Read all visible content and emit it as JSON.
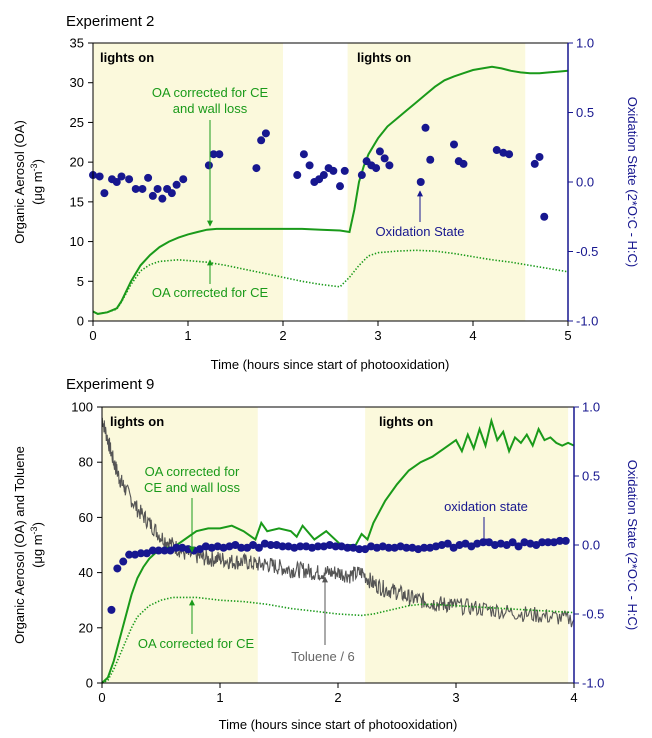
{
  "colors": {
    "oa_corrected_wall": "#1a9a1a",
    "oa_corrected_ce": "#1a9a1a",
    "oxidation_state": "#17178f",
    "toluene": "#555555",
    "lights_shading": "#fbf9dc",
    "right_axis": "#17178f"
  },
  "chart_data": [
    {
      "type": "line",
      "title": "Experiment 2",
      "xlabel": "Time (hours since start of photooxidation)",
      "ylabel": "Organic Aerosol (OA)",
      "ylabel_units_prefix": "(μg m",
      "ylabel_units_exp": "-3",
      "ylabel_units_suffix": ")",
      "y2label": "Oxidation State (2*O:C - H:C)",
      "xlim": [
        0,
        5
      ],
      "ylim": [
        0,
        35
      ],
      "y2lim": [
        -1.0,
        1.0
      ],
      "xticks": [
        "0",
        "1",
        "2",
        "3",
        "4",
        "5"
      ],
      "yticks": [
        "0",
        "5",
        "10",
        "15",
        "20",
        "25",
        "30",
        "35"
      ],
      "y2ticks": [
        "-1.0",
        "-0.5",
        "0.0",
        "0.5",
        "1.0"
      ],
      "lights_on_periods": [
        [
          0,
          2.0
        ],
        [
          2.68,
          4.55
        ]
      ],
      "lights_on_label": "lights on",
      "annotations": {
        "wall_label_line1": "OA corrected for CE",
        "wall_label_line2": "and wall loss",
        "ce_label": "OA corrected for CE",
        "os_label": "Oxidation State"
      },
      "series": [
        {
          "name": "OA corrected for CE and wall loss",
          "style": "solid",
          "x": [
            0,
            0.05,
            0.15,
            0.25,
            0.3,
            0.4,
            0.5,
            0.6,
            0.7,
            0.8,
            0.9,
            1.0,
            1.1,
            1.2,
            1.3,
            1.5,
            1.8,
            2.0,
            2.2,
            2.4,
            2.6,
            2.7,
            2.75,
            2.8,
            2.85,
            2.9,
            3.0,
            3.1,
            3.2,
            3.3,
            3.4,
            3.5,
            3.6,
            3.7,
            3.8,
            3.9,
            4.0,
            4.1,
            4.2,
            4.3,
            4.4,
            4.5,
            4.6,
            4.7,
            4.8,
            4.9,
            5.0
          ],
          "y": [
            1.2,
            0.9,
            1.1,
            1.6,
            2.5,
            5.0,
            7.0,
            8.3,
            9.3,
            10.0,
            10.5,
            10.9,
            11.2,
            11.5,
            11.6,
            11.6,
            11.6,
            11.6,
            11.6,
            11.5,
            11.4,
            11.2,
            14.0,
            17.5,
            19.5,
            21.0,
            23.0,
            24.5,
            25.5,
            26.5,
            27.5,
            28.5,
            29.5,
            30.3,
            30.8,
            31.2,
            31.6,
            31.8,
            32.0,
            31.8,
            31.5,
            31.3,
            31.2,
            31.2,
            31.3,
            31.4,
            31.5
          ]
        },
        {
          "name": "OA corrected for CE",
          "style": "dotted",
          "x": [
            0,
            0.05,
            0.15,
            0.25,
            0.3,
            0.4,
            0.5,
            0.6,
            0.7,
            0.8,
            0.9,
            1.0,
            1.2,
            1.4,
            1.6,
            1.8,
            2.0,
            2.2,
            2.4,
            2.6,
            2.7,
            2.8,
            2.9,
            3.0,
            3.2,
            3.4,
            3.6,
            3.8,
            4.0,
            4.2,
            4.4,
            4.6,
            4.8,
            5.0
          ],
          "y": [
            1.2,
            0.9,
            1.1,
            1.5,
            2.4,
            4.6,
            6.3,
            7.1,
            7.5,
            7.6,
            7.7,
            7.6,
            7.4,
            7.0,
            6.5,
            6.0,
            5.5,
            5.0,
            4.6,
            4.3,
            5.5,
            7.0,
            8.2,
            8.6,
            8.8,
            8.9,
            8.8,
            8.5,
            8.1,
            7.7,
            7.4,
            7.0,
            6.6,
            6.2
          ]
        },
        {
          "name": "Oxidation State",
          "style": "markers",
          "axis": "right",
          "x": [
            0.0,
            0.07,
            0.12,
            0.2,
            0.25,
            0.3,
            0.38,
            0.45,
            0.52,
            0.58,
            0.63,
            0.68,
            0.73,
            0.78,
            0.83,
            0.88,
            0.95,
            1.22,
            1.27,
            1.33,
            1.72,
            1.77,
            1.82,
            2.15,
            2.22,
            2.28,
            2.33,
            2.38,
            2.43,
            2.48,
            2.53,
            2.6,
            2.65,
            2.83,
            2.88,
            2.93,
            2.98,
            3.02,
            3.07,
            3.12,
            3.45,
            3.5,
            3.55,
            3.8,
            3.85,
            3.9,
            4.25,
            4.32,
            4.38,
            4.65,
            4.7,
            4.75
          ],
          "y": [
            0.05,
            0.04,
            -0.08,
            0.02,
            0.0,
            0.04,
            0.02,
            -0.05,
            -0.05,
            0.03,
            -0.1,
            -0.05,
            -0.12,
            -0.05,
            -0.08,
            -0.02,
            0.02,
            0.12,
            0.2,
            0.2,
            0.1,
            0.3,
            0.35,
            0.05,
            0.2,
            0.12,
            0.0,
            0.02,
            0.05,
            0.1,
            0.08,
            -0.03,
            0.08,
            0.05,
            0.15,
            0.12,
            0.1,
            0.22,
            0.17,
            0.12,
            0.0,
            0.39,
            0.16,
            0.27,
            0.15,
            0.13,
            0.23,
            0.21,
            0.2,
            0.13,
            0.18,
            -0.25
          ]
        }
      ]
    },
    {
      "type": "line",
      "title": "Experiment 9",
      "xlabel": "Time (hours since start of photooxidation)",
      "ylabel": "Organic Aerosol (OA) and Toluene",
      "ylabel_units_prefix": "(μg m",
      "ylabel_units_exp": "-3",
      "ylabel_units_suffix": ")",
      "y2label": "Oxidation State (2*O:C - H:C)",
      "xlim": [
        0,
        4
      ],
      "ylim": [
        0,
        100
      ],
      "y2lim": [
        -1.0,
        1.0
      ],
      "xticks": [
        "0",
        "1",
        "2",
        "3",
        "4"
      ],
      "yticks": [
        "0",
        "20",
        "40",
        "60",
        "80",
        "100"
      ],
      "y2ticks": [
        "-1.0",
        "-0.5",
        "0.0",
        "0.5",
        "1.0"
      ],
      "lights_on_periods": [
        [
          0,
          1.32
        ],
        [
          2.23,
          3.95
        ]
      ],
      "lights_on_label": "lights on",
      "annotations": {
        "wall_label_line1": "OA corrected for",
        "wall_label_line2": "CE and wall loss",
        "ce_label": "OA corrected for CE",
        "os_label": "oxidation state",
        "toluene_label": "Toluene / 6"
      },
      "series": [
        {
          "name": "OA corrected for CE and wall loss",
          "style": "solid",
          "x": [
            0,
            0.05,
            0.1,
            0.15,
            0.2,
            0.25,
            0.3,
            0.35,
            0.4,
            0.45,
            0.5,
            0.55,
            0.6,
            0.7,
            0.8,
            0.9,
            1.0,
            1.1,
            1.2,
            1.3,
            1.35,
            1.4,
            1.5,
            1.6,
            1.65,
            1.7,
            1.8,
            1.9,
            2.0,
            2.05,
            2.1,
            2.15,
            2.2,
            2.25,
            2.3,
            2.4,
            2.5,
            2.6,
            2.7,
            2.8,
            2.9,
            3.0,
            3.05,
            3.1,
            3.15,
            3.2,
            3.25,
            3.3,
            3.35,
            3.4,
            3.45,
            3.5,
            3.55,
            3.6,
            3.65,
            3.7,
            3.75,
            3.8,
            3.85,
            3.9,
            3.95,
            4.0
          ],
          "y": [
            0,
            2,
            8,
            16,
            24,
            32,
            38,
            42,
            45,
            47,
            48,
            49,
            49,
            52,
            55,
            56,
            56,
            57,
            55,
            52,
            58,
            55,
            56,
            55,
            53,
            57,
            52,
            55,
            51,
            49,
            50,
            50,
            54,
            52,
            58,
            66,
            72,
            77,
            80,
            82,
            85,
            88,
            84,
            90,
            85,
            92,
            86,
            95,
            88,
            91,
            84,
            89,
            87,
            90,
            86,
            92,
            88,
            89,
            87,
            86,
            87,
            86
          ]
        },
        {
          "name": "OA corrected for CE",
          "style": "dotted",
          "x": [
            0,
            0.05,
            0.1,
            0.15,
            0.2,
            0.25,
            0.3,
            0.35,
            0.4,
            0.5,
            0.6,
            0.7,
            0.8,
            1.0,
            1.2,
            1.4,
            1.6,
            1.8,
            2.0,
            2.2,
            2.3,
            2.4,
            2.5,
            2.6,
            2.7,
            2.8,
            3.0,
            3.2,
            3.4,
            3.6,
            3.8,
            4.0
          ],
          "y": [
            0,
            1,
            5,
            10,
            15,
            20,
            24,
            26,
            28,
            30,
            31,
            31,
            31,
            30,
            29.5,
            28.5,
            27,
            26,
            25,
            24.5,
            25,
            26,
            27,
            28,
            28.5,
            28.5,
            28,
            27.5,
            27,
            26.5,
            26,
            25.5
          ]
        },
        {
          "name": "Toluene / 6",
          "style": "noisy",
          "x": [
            0,
            0.05,
            0.1,
            0.15,
            0.2,
            0.3,
            0.4,
            0.5,
            0.6,
            0.7,
            0.8,
            0.9,
            1.0,
            1.1,
            1.2,
            1.3,
            1.4,
            1.5,
            1.6,
            1.7,
            1.8,
            1.9,
            2.0,
            2.1,
            2.2,
            2.3,
            2.4,
            2.5,
            2.6,
            2.7,
            2.8,
            2.9,
            3.0,
            3.2,
            3.4,
            3.6,
            3.8,
            4.0
          ],
          "y": [
            96,
            88,
            80,
            74,
            70,
            63,
            58,
            53,
            50,
            47,
            46,
            45,
            45,
            44,
            44,
            43,
            43,
            42,
            41,
            41,
            40,
            40,
            40,
            39,
            40,
            36,
            34,
            33,
            31,
            30,
            29,
            28.5,
            28,
            27,
            26,
            25,
            24,
            23
          ]
        },
        {
          "name": "oxidation state",
          "style": "markers",
          "axis": "right",
          "x": [
            0.08,
            0.13,
            0.18,
            0.23,
            0.28,
            0.33,
            0.38,
            0.43,
            0.48,
            0.53,
            0.58,
            0.63,
            0.68,
            0.73,
            0.78,
            0.83,
            0.88,
            0.93,
            0.98,
            1.03,
            1.08,
            1.13,
            1.18,
            1.23,
            1.28,
            1.33,
            1.38,
            1.43,
            1.48,
            1.53,
            1.58,
            1.63,
            1.68,
            1.73,
            1.78,
            1.83,
            1.88,
            1.93,
            1.98,
            2.03,
            2.08,
            2.13,
            2.18,
            2.23,
            2.28,
            2.33,
            2.38,
            2.43,
            2.48,
            2.53,
            2.58,
            2.63,
            2.68,
            2.73,
            2.78,
            2.83,
            2.88,
            2.93,
            2.98,
            3.03,
            3.08,
            3.13,
            3.18,
            3.23,
            3.28,
            3.33,
            3.38,
            3.43,
            3.48,
            3.53,
            3.58,
            3.63,
            3.68,
            3.73,
            3.78,
            3.83,
            3.88,
            3.93
          ],
          "y": [
            -0.47,
            -0.17,
            -0.12,
            -0.07,
            -0.07,
            -0.06,
            -0.06,
            -0.04,
            -0.04,
            -0.04,
            -0.04,
            -0.02,
            -0.02,
            -0.03,
            -0.04,
            -0.03,
            -0.01,
            -0.02,
            -0.01,
            -0.02,
            -0.01,
            0.0,
            -0.02,
            -0.02,
            0.0,
            -0.02,
            0.01,
            0.0,
            0.0,
            -0.01,
            -0.01,
            -0.02,
            -0.01,
            -0.01,
            -0.02,
            -0.01,
            -0.01,
            0.0,
            -0.01,
            -0.01,
            -0.02,
            -0.02,
            -0.03,
            -0.03,
            -0.01,
            -0.02,
            -0.01,
            -0.02,
            -0.02,
            -0.01,
            -0.02,
            -0.02,
            -0.03,
            -0.02,
            -0.02,
            -0.01,
            0.0,
            0.01,
            -0.02,
            0.0,
            0.01,
            -0.01,
            0.01,
            0.02,
            0.02,
            0.0,
            0.01,
            0.0,
            0.02,
            -0.01,
            0.02,
            0.01,
            0.0,
            0.02,
            0.02,
            0.02,
            0.03,
            0.03
          ]
        }
      ]
    }
  ]
}
